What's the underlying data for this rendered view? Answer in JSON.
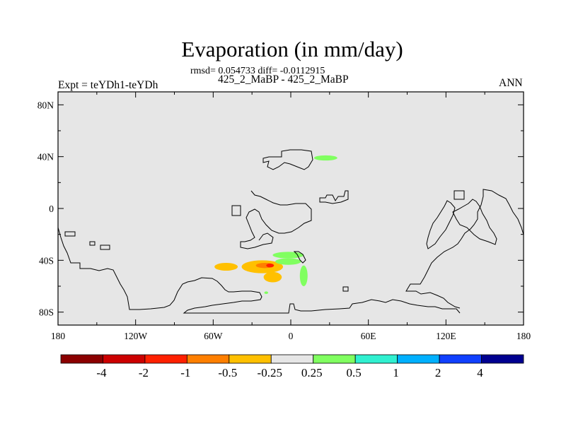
{
  "title": "Evaporation (in mm/day)",
  "stats": "rmsd= 0.054733 diff= -0.0112915",
  "subtitle": "425_2_MaBP - 425_2_MaBP",
  "expt_label": "Expt = teYDh1-teYDh",
  "season": "ANN",
  "colors": {
    "map_background": "#e6e6e6",
    "coastline": "#000000"
  },
  "chart_data": {
    "type": "heatmap",
    "title": "Evaporation (in mm/day)",
    "xlim": [
      -180,
      180
    ],
    "ylim": [
      -90,
      90
    ],
    "x_ticks": [
      {
        "value": -180,
        "label": "180"
      },
      {
        "value": -120,
        "label": "120W"
      },
      {
        "value": -60,
        "label": "60W"
      },
      {
        "value": 0,
        "label": "0"
      },
      {
        "value": 60,
        "label": "60E"
      },
      {
        "value": 120,
        "label": "120E"
      },
      {
        "value": 180,
        "label": "180"
      }
    ],
    "y_ticks": [
      {
        "value": 80,
        "label": "80N"
      },
      {
        "value": 40,
        "label": "40N"
      },
      {
        "value": 0,
        "label": "0"
      },
      {
        "value": -40,
        "label": "40S"
      },
      {
        "value": -80,
        "label": "80S"
      }
    ],
    "colorbar": {
      "colors": [
        "#8b0000",
        "#cc0000",
        "#ff2000",
        "#ff7f00",
        "#ffc000",
        "#e6e6e6",
        "#80ff60",
        "#30f0d0",
        "#00b0ff",
        "#1040ff",
        "#000090"
      ],
      "labels": [
        "-4",
        "-2",
        "-1",
        "-0.5",
        "-0.25",
        "0.25",
        "0.5",
        "1",
        "2",
        "4"
      ]
    },
    "anomalies": [
      {
        "lon": -50,
        "lat": -45,
        "rx": 9,
        "ry": 3,
        "level": "-0.25"
      },
      {
        "lon": -22,
        "lat": -45,
        "rx": 16,
        "ry": 5,
        "level": "-0.25"
      },
      {
        "lon": -14,
        "lat": -53,
        "rx": 7,
        "ry": 4,
        "level": "-0.25"
      },
      {
        "lon": -20,
        "lat": -44,
        "rx": 7,
        "ry": 2,
        "level": "-0.5"
      },
      {
        "lon": -16,
        "lat": -44,
        "rx": 3,
        "ry": 1.5,
        "level": "-1"
      },
      {
        "lon": -2,
        "lat": -36,
        "rx": 12,
        "ry": 2.5,
        "level": "0.25"
      },
      {
        "lon": -2,
        "lat": -41,
        "rx": 10,
        "ry": 2.5,
        "level": "0.25"
      },
      {
        "lon": 10,
        "lat": -52,
        "rx": 3,
        "ry": 8,
        "level": "0.25"
      },
      {
        "lon": 27,
        "lat": 39,
        "rx": 9,
        "ry": 2,
        "level": "0.25"
      },
      {
        "lon": -19,
        "lat": -65,
        "rx": 1.5,
        "ry": 1,
        "level": "0.25"
      }
    ]
  }
}
